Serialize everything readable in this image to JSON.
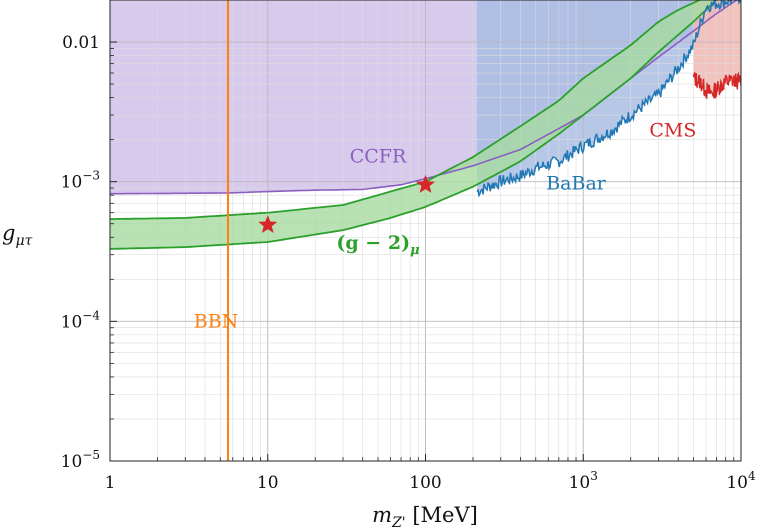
{
  "chart_data": {
    "type": "area",
    "xlabel": "m_{Z'} [MeV]",
    "ylabel": "g_{μτ}",
    "xlog": true,
    "ylog": true,
    "xlim": [
      1,
      10000
    ],
    "ylim": [
      1e-05,
      0.02
    ],
    "x_ticks": [
      {
        "value": 1,
        "label": "1"
      },
      {
        "value": 10,
        "label": "10"
      },
      {
        "value": 100,
        "label": "100"
      },
      {
        "value": 1000,
        "label": "10",
        "exp": "3"
      },
      {
        "value": 10000,
        "label": "10",
        "exp": "4"
      }
    ],
    "y_ticks": [
      {
        "value": 1e-05,
        "label": "10",
        "exp": "−5"
      },
      {
        "value": 0.0001,
        "label": "10",
        "exp": "−4"
      },
      {
        "value": 0.001,
        "label": "10",
        "exp": "−3"
      },
      {
        "value": 0.01,
        "label": "0.01"
      }
    ],
    "grid": true,
    "series": [
      {
        "name": "CCFR",
        "color": "#8b5fbf",
        "fill": "#c9b8e6",
        "boundary": [
          [
            1,
            0.00082
          ],
          [
            5.6,
            0.00083
          ],
          [
            10,
            0.00085
          ],
          [
            20,
            0.00087
          ],
          [
            40,
            0.00088
          ],
          [
            70,
            0.00095
          ],
          [
            100,
            0.00105
          ],
          [
            200,
            0.0013
          ],
          [
            400,
            0.0017
          ],
          [
            700,
            0.0024
          ],
          [
            1000,
            0.003
          ],
          [
            2000,
            0.0055
          ],
          [
            3000,
            0.0078
          ],
          [
            5000,
            0.012
          ],
          [
            7000,
            0.016
          ],
          [
            10000,
            0.021
          ]
        ]
      },
      {
        "name": "BaBar",
        "color": "#1f77b4",
        "fill": "#a9bde3",
        "boundary": [
          [
            212,
            0.00085
          ],
          [
            250,
            0.00092
          ],
          [
            300,
            0.001
          ],
          [
            400,
            0.0011
          ],
          [
            500,
            0.00125
          ],
          [
            700,
            0.0014
          ],
          [
            1000,
            0.0018
          ],
          [
            1500,
            0.0023
          ],
          [
            2000,
            0.003
          ],
          [
            3000,
            0.0042
          ],
          [
            4000,
            0.0065
          ],
          [
            5000,
            0.0095
          ],
          [
            6000,
            0.018
          ],
          [
            10000,
            0.021
          ]
        ]
      },
      {
        "name": "CMS",
        "color": "#d62728",
        "fill": "#f0b7b3",
        "boundary": [
          [
            5000,
            0.0055
          ],
          [
            5500,
            0.0052
          ],
          [
            6000,
            0.0045
          ],
          [
            6500,
            0.0043
          ],
          [
            7000,
            0.0046
          ],
          [
            8000,
            0.0052
          ],
          [
            9000,
            0.0053
          ],
          [
            10000,
            0.0052
          ]
        ]
      },
      {
        "name": "(g − 2)_μ",
        "color": "#2ca02c",
        "fill": "#a6dba0",
        "upper": [
          [
            1,
            0.00054
          ],
          [
            3,
            0.00055
          ],
          [
            10,
            0.0006
          ],
          [
            30,
            0.00068
          ],
          [
            60,
            0.00085
          ],
          [
            100,
            0.001
          ],
          [
            200,
            0.0015
          ],
          [
            400,
            0.0025
          ],
          [
            700,
            0.0038
          ],
          [
            1000,
            0.0055
          ],
          [
            2000,
            0.0095
          ],
          [
            3000,
            0.014
          ],
          [
            4000,
            0.017
          ],
          [
            6000,
            0.021
          ]
        ],
        "lower": [
          [
            1,
            0.00033
          ],
          [
            3,
            0.00034
          ],
          [
            10,
            0.00037
          ],
          [
            30,
            0.00045
          ],
          [
            60,
            0.00055
          ],
          [
            100,
            0.00066
          ],
          [
            200,
            0.00092
          ],
          [
            400,
            0.0014
          ],
          [
            700,
            0.0022
          ],
          [
            1000,
            0.003
          ],
          [
            2000,
            0.0055
          ],
          [
            3000,
            0.0085
          ],
          [
            5000,
            0.014
          ],
          [
            7000,
            0.02
          ]
        ]
      },
      {
        "name": "BBN",
        "color": "#ff7f0e",
        "x_value": 5.6
      }
    ],
    "points": [
      {
        "x": 10,
        "y": 0.00049,
        "color": "#d62728",
        "marker": "star"
      },
      {
        "x": 100,
        "y": 0.00095,
        "color": "#d62728",
        "marker": "star"
      }
    ],
    "annotations": [
      {
        "text": "CCFR",
        "x": 50,
        "y": 0.00137,
        "color": "#8b5fbf"
      },
      {
        "text": "BaBar",
        "x": 900,
        "y": 0.00088,
        "color": "#1f77b4"
      },
      {
        "text": "CMS",
        "x": 3700,
        "y": 0.0021,
        "color": "#d62728"
      },
      {
        "text": "BBN",
        "x": 4.7,
        "y": 9e-05,
        "color": "#ff7f0e"
      },
      {
        "text": "(g − 2)",
        "sub": "μ",
        "x": 50,
        "y": 0.00033,
        "color": "#2ca02c"
      }
    ]
  }
}
